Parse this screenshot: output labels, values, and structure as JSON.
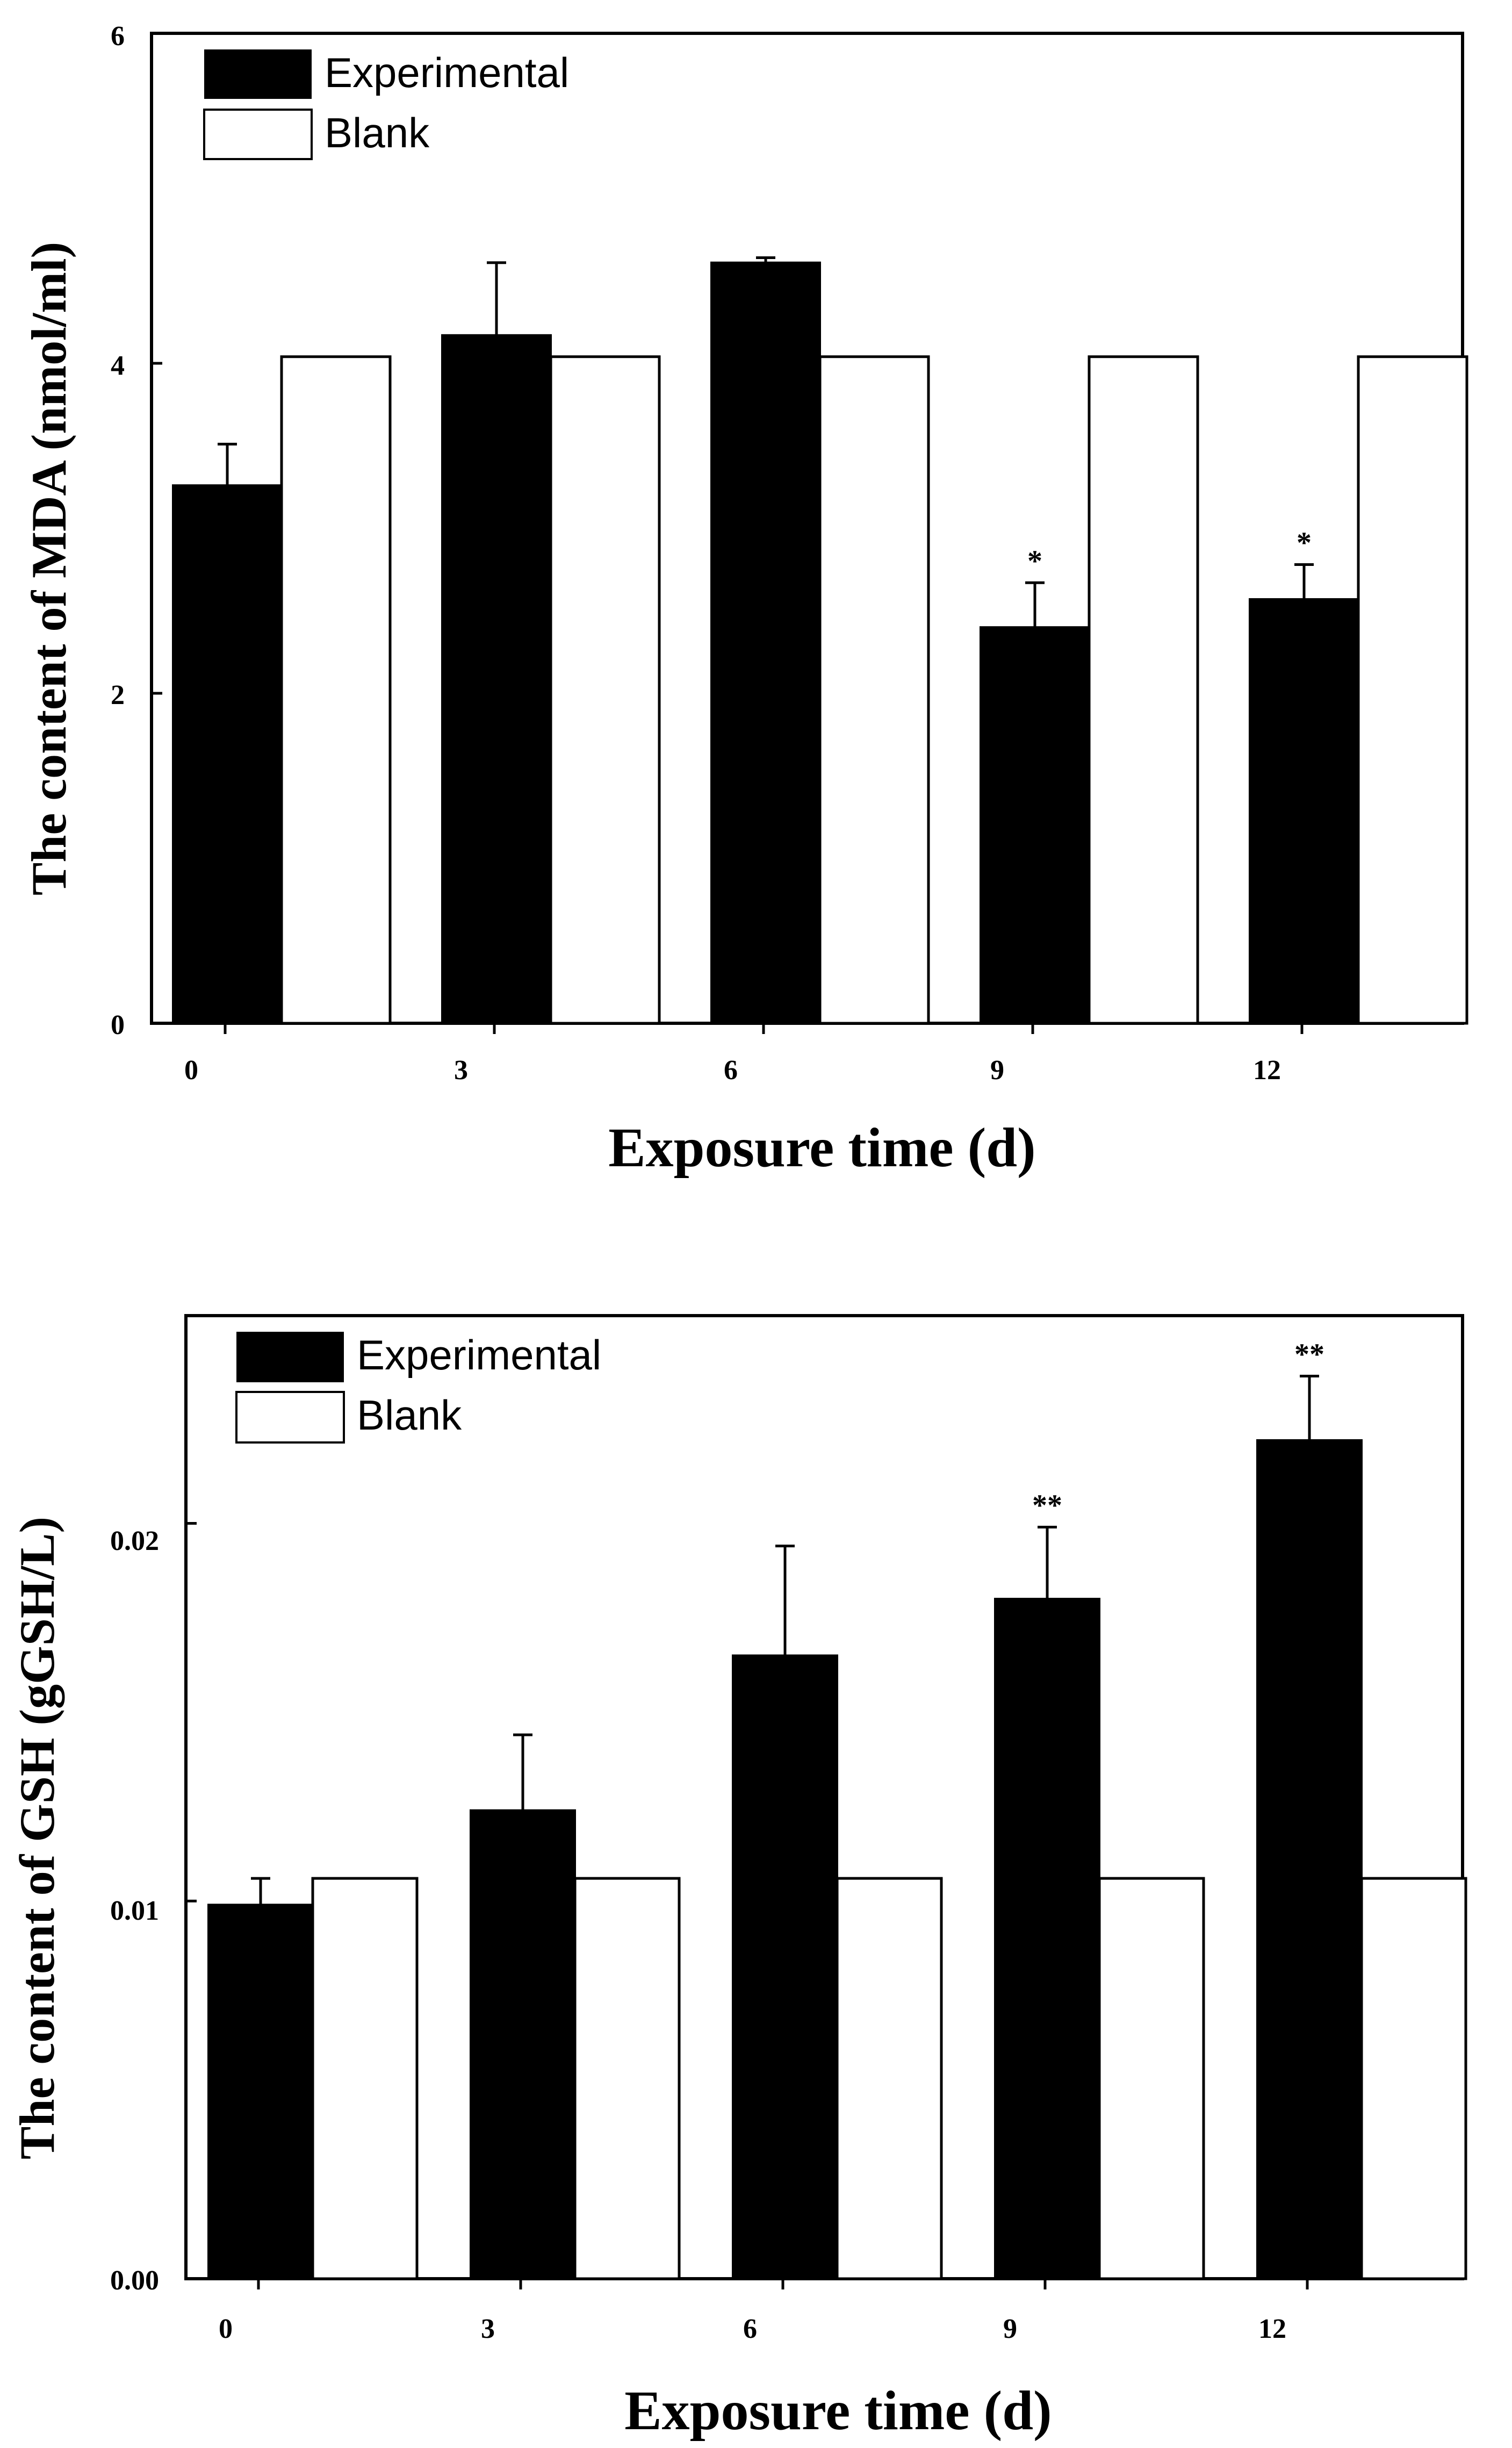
{
  "chart_data": [
    {
      "type": "bar",
      "categories": [
        "0",
        "3",
        "6",
        "9",
        "12"
      ],
      "series": [
        {
          "name": "Experimental",
          "values": [
            3.26,
            4.17,
            4.61,
            2.4,
            2.57
          ],
          "errors": [
            0.25,
            0.44,
            0.03,
            0.27,
            0.21
          ],
          "color": "#000000"
        },
        {
          "name": "Blank",
          "values": [
            4.04,
            4.04,
            4.04,
            4.04,
            4.04
          ],
          "color": "#ffffff"
        }
      ],
      "significance": [
        "",
        "",
        "",
        "*",
        "*"
      ],
      "xlabel": "Exposure time (d)",
      "ylabel": "The content of MDA (nmol/ml)",
      "ylim": [
        0,
        6
      ],
      "yticks": [
        "0",
        "2",
        "4",
        "6"
      ],
      "ytick_values": [
        0,
        2,
        4,
        6
      ],
      "legend": [
        "Experimental",
        "Blank"
      ],
      "legend_position": "top-left",
      "grid": false
    },
    {
      "type": "bar",
      "categories": [
        "0",
        "3",
        "6",
        "9",
        "12"
      ],
      "series": [
        {
          "name": "Experimental",
          "values": [
            0.0099,
            0.0124,
            0.0165,
            0.018,
            0.0222
          ],
          "errors": [
            0.0007,
            0.002,
            0.0029,
            0.0019,
            0.0017
          ],
          "color": "#000000"
        },
        {
          "name": "Blank",
          "values": [
            0.0106,
            0.0106,
            0.0106,
            0.0106,
            0.0106
          ],
          "color": "#ffffff"
        }
      ],
      "significance": [
        "",
        "",
        "",
        "**",
        "**"
      ],
      "xlabel": "Exposure time (d)",
      "ylabel": "The content of GSH (gGSH/L)",
      "ylim": [
        0,
        0.0255
      ],
      "yticks": [
        "0.00",
        "0.01",
        "0.02"
      ],
      "ytick_values": [
        0,
        0.01,
        0.02
      ],
      "legend": [
        "Experimental",
        "Blank"
      ],
      "legend_position": "top-left",
      "grid": false
    }
  ]
}
